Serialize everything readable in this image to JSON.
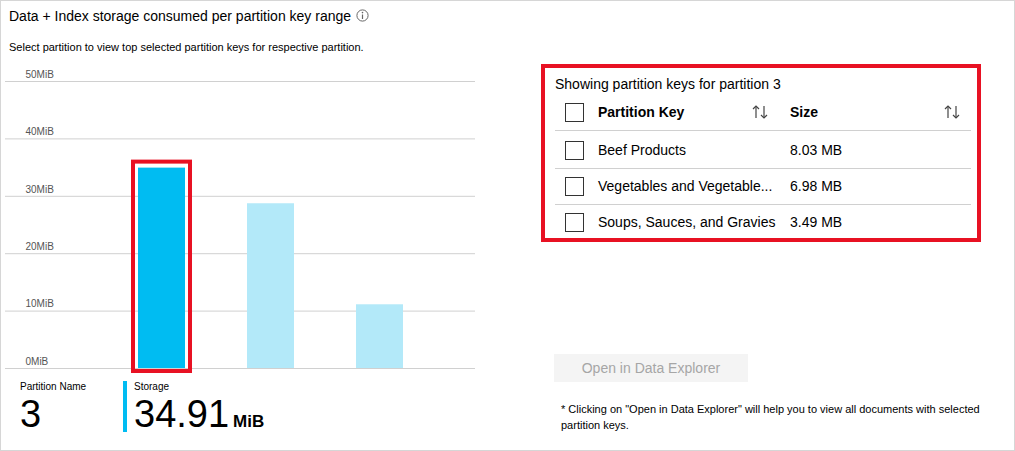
{
  "chart_data": {
    "type": "bar",
    "title": "Data + Index storage consumed per partition key range",
    "subtitle": "Select partition to view top selected partition keys for respective partition.",
    "categories": [
      null,
      null,
      null
    ],
    "values": [
      34.91,
      28.7,
      11.1
    ],
    "colors": [
      "#00bcf2",
      "#b3e9f9",
      "#b3e9f9"
    ],
    "ylim": [
      0,
      50
    ],
    "yticks": [
      {
        "value": 0,
        "label": "0MiB"
      },
      {
        "value": 10,
        "label": "10MiB"
      },
      {
        "value": 20,
        "label": "20MiB"
      },
      {
        "value": 30,
        "label": "30MiB"
      },
      {
        "value": 40,
        "label": "40MiB"
      },
      {
        "value": 50,
        "label": "50MiB"
      }
    ],
    "grid": true,
    "tick_labels": "y"
  },
  "footer": {
    "partition_name_label": "Partition Name",
    "partition_name": "3",
    "storage_label": "Storage",
    "storage_value": "34.91",
    "storage_unit": "MiB"
  },
  "partition_keys_panel": {
    "title": "Showing partition keys for partition 3",
    "columns": [
      "Partition Key",
      "Size"
    ],
    "rows": [
      [
        "Beef Products",
        "8.03 MB"
      ],
      [
        "Vegetables and Vegetable...",
        "6.98 MB"
      ],
      [
        "Soups, Sauces, and Gravies",
        "3.49 MB"
      ]
    ]
  },
  "button": "Open in Data Explorer",
  "note": "* Clicking on \"Open in Data Explorer\" will help you to view all documents with selected partition keys."
}
